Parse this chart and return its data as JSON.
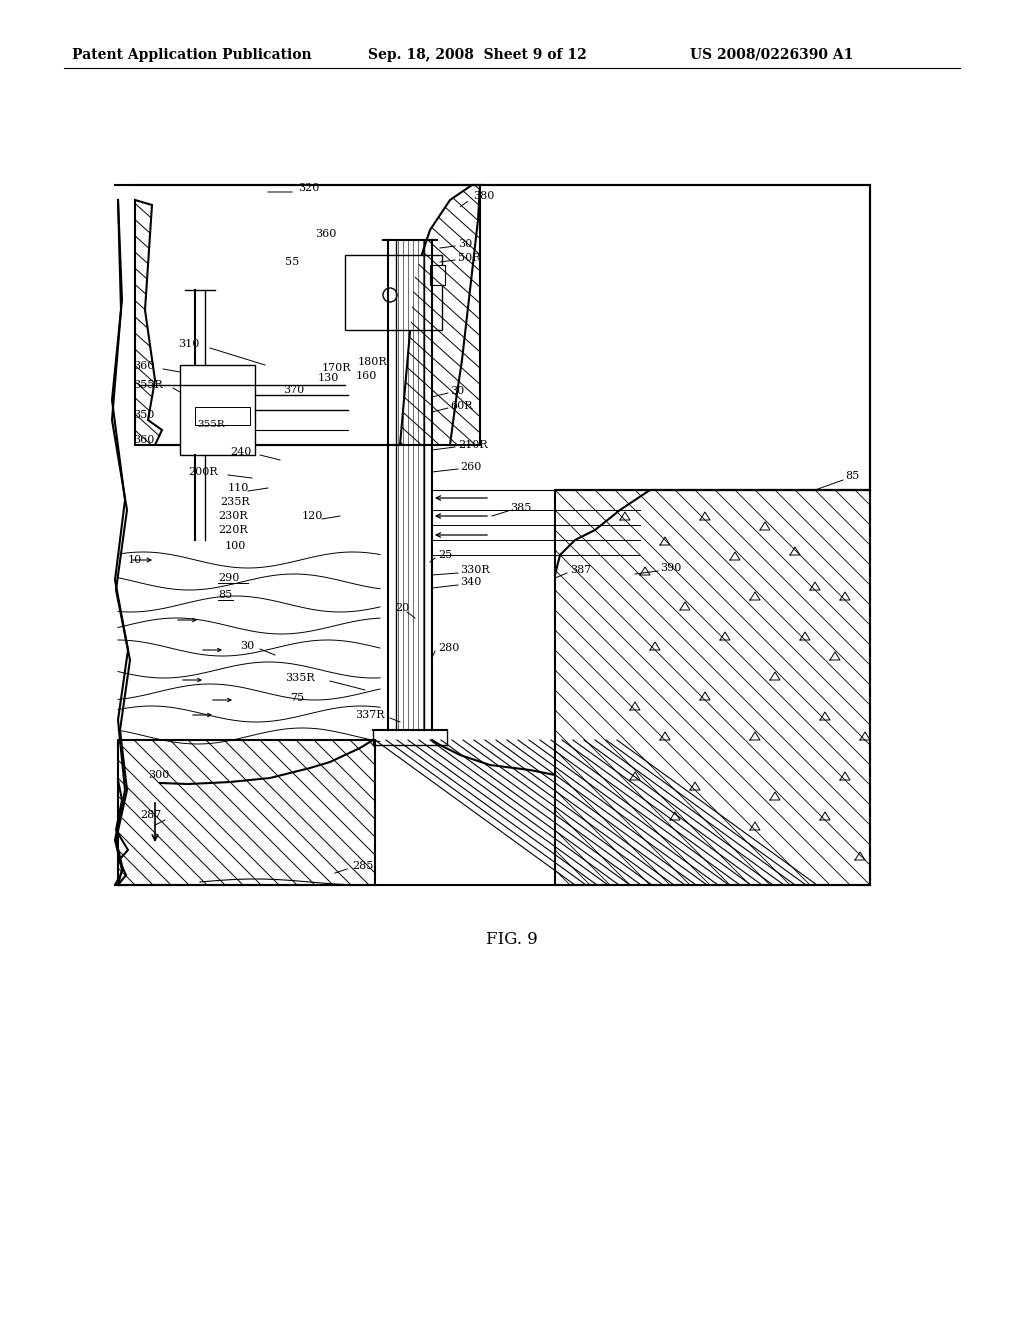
{
  "bg_color": "#ffffff",
  "header_left": "Patent Application Publication",
  "header_mid": "Sep. 18, 2008  Sheet 9 of 12",
  "header_right": "US 2008/0226390 A1",
  "fig_label": "FIG. 9",
  "header_fontsize": 10,
  "label_fontsize": 8.0
}
